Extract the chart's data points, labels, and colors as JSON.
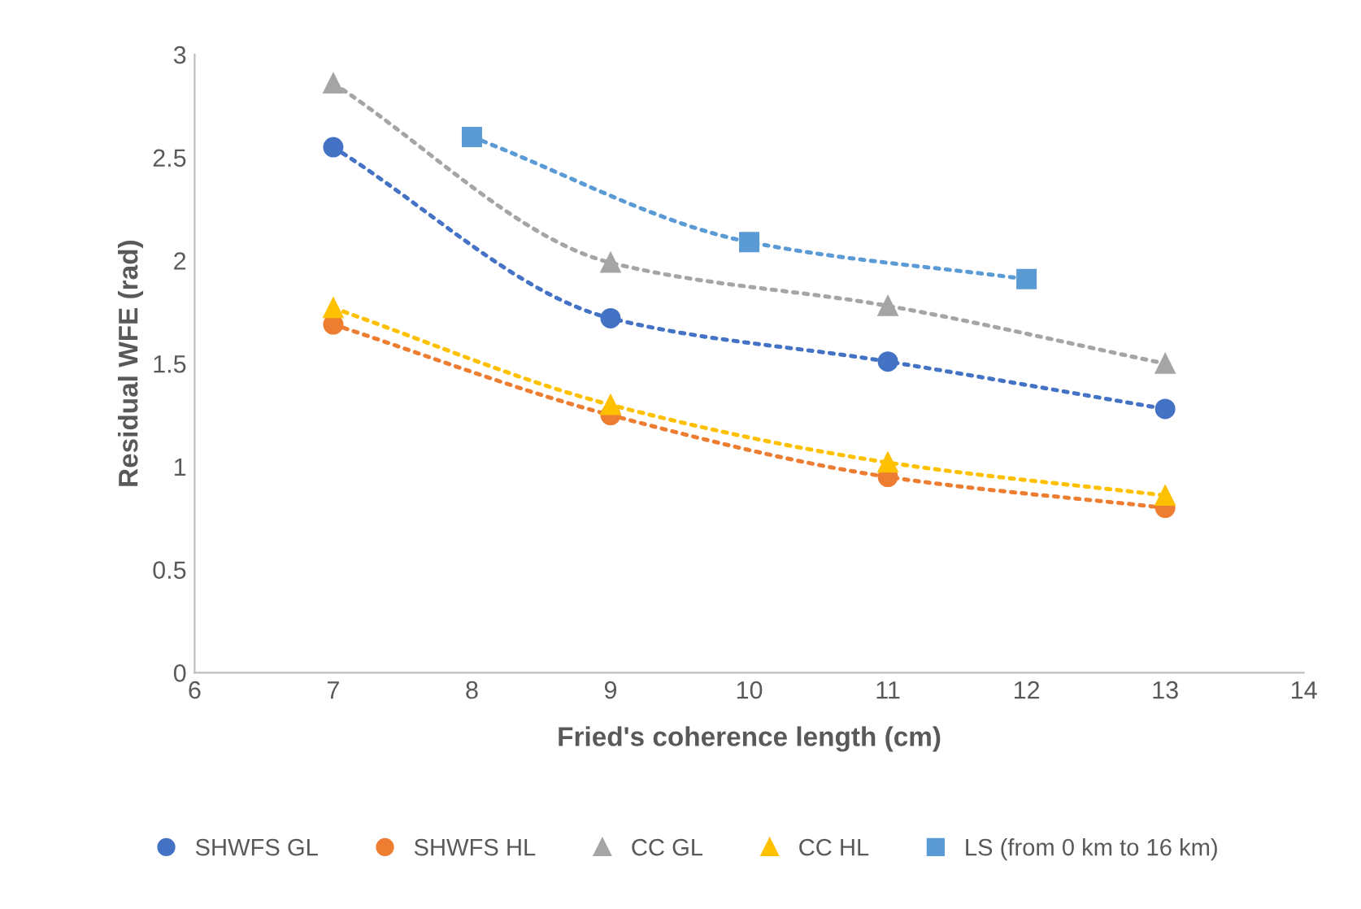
{
  "chart_data": {
    "type": "line",
    "xlabel": "Fried's coherence length (cm)",
    "ylabel": "Residual WFE (rad)",
    "xlim": [
      6,
      14
    ],
    "xticks": [
      6,
      7,
      8,
      9,
      10,
      11,
      12,
      13,
      14
    ],
    "ylim": [
      0,
      3
    ],
    "yticks": [
      0,
      0.5,
      1,
      1.5,
      2,
      2.5,
      3
    ],
    "grid": false,
    "legend": "bottom",
    "line_style": "dotted",
    "series": [
      {
        "name": "SHWFS GL",
        "color": "#4472c4",
        "marker": "circle",
        "x": [
          7,
          9,
          11,
          13
        ],
        "values": [
          2.55,
          1.72,
          1.51,
          1.28
        ]
      },
      {
        "name": "SHWFS HL",
        "color": "#ed7d31",
        "marker": "circle",
        "x": [
          7,
          9,
          11,
          13
        ],
        "values": [
          1.69,
          1.25,
          0.95,
          0.8
        ]
      },
      {
        "name": "CC GL",
        "color": "#a5a5a5",
        "marker": "triangle",
        "x": [
          7,
          9,
          11,
          13
        ],
        "values": [
          2.86,
          1.99,
          1.78,
          1.5
        ]
      },
      {
        "name": "CC HL",
        "color": "#ffc000",
        "marker": "triangle",
        "x": [
          7,
          9,
          11,
          13
        ],
        "values": [
          1.77,
          1.3,
          1.02,
          0.86
        ]
      },
      {
        "name": "LS (from 0 km to 16 km)",
        "color": "#5b9bd5",
        "marker": "square",
        "x": [
          8,
          10,
          12
        ],
        "values": [
          2.6,
          2.09,
          1.91
        ]
      }
    ]
  }
}
